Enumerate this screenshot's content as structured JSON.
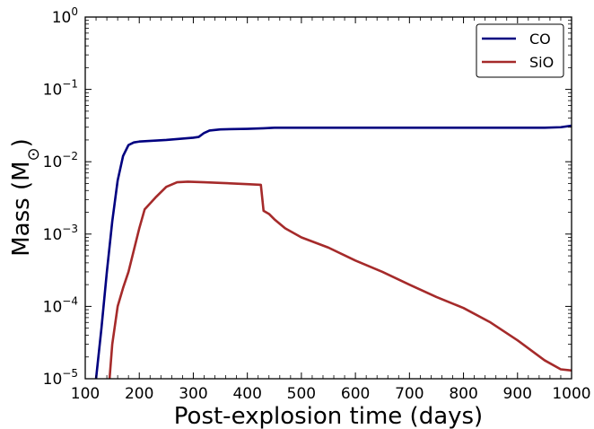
{
  "chart_data": {
    "type": "line",
    "xlabel": "Post-explosion time (days)",
    "ylabel": "Mass (M",
    "ylabel_sub": "⊙",
    "ylabel_close": ")",
    "xlim": [
      100,
      1000
    ],
    "ylim": [
      1e-05,
      1
    ],
    "yscale": "log",
    "grid": false,
    "legend_position": "top-right",
    "xticks": [
      100,
      200,
      300,
      400,
      500,
      600,
      700,
      800,
      900,
      1000
    ],
    "xtick_labels": [
      "100",
      "200",
      "300",
      "400",
      "500",
      "600",
      "700",
      "800",
      "900",
      "1000"
    ],
    "yticks": [
      {
        "value": 1e-05,
        "base": "10",
        "exp": "−5"
      },
      {
        "value": 0.0001,
        "base": "10",
        "exp": "−4"
      },
      {
        "value": 0.001,
        "base": "10",
        "exp": "−3"
      },
      {
        "value": 0.01,
        "base": "10",
        "exp": "−2"
      },
      {
        "value": 0.1,
        "base": "10",
        "exp": "−1"
      },
      {
        "value": 1,
        "base": "10",
        "exp": "0"
      }
    ],
    "series": [
      {
        "name": "CO",
        "color": "#000080",
        "points": [
          [
            120,
            1e-05
          ],
          [
            130,
            5e-05
          ],
          [
            140,
            0.0003
          ],
          [
            150,
            0.0015
          ],
          [
            160,
            0.0055
          ],
          [
            170,
            0.012
          ],
          [
            180,
            0.017
          ],
          [
            190,
            0.0185
          ],
          [
            200,
            0.019
          ],
          [
            250,
            0.02
          ],
          [
            300,
            0.0215
          ],
          [
            310,
            0.022
          ],
          [
            320,
            0.025
          ],
          [
            330,
            0.027
          ],
          [
            350,
            0.028
          ],
          [
            400,
            0.0285
          ],
          [
            430,
            0.029
          ],
          [
            450,
            0.0295
          ],
          [
            500,
            0.0295
          ],
          [
            600,
            0.0295
          ],
          [
            700,
            0.0295
          ],
          [
            800,
            0.0295
          ],
          [
            900,
            0.0295
          ],
          [
            950,
            0.0295
          ],
          [
            980,
            0.03
          ],
          [
            1000,
            0.0315
          ]
        ]
      },
      {
        "name": "SiO",
        "color": "#A52A2A",
        "points": [
          [
            145,
            1e-05
          ],
          [
            150,
            3e-05
          ],
          [
            160,
            0.0001
          ],
          [
            170,
            0.00018
          ],
          [
            180,
            0.0003
          ],
          [
            190,
            0.0006
          ],
          [
            200,
            0.0012
          ],
          [
            210,
            0.0022
          ],
          [
            230,
            0.0032
          ],
          [
            250,
            0.0045
          ],
          [
            270,
            0.0052
          ],
          [
            290,
            0.0053
          ],
          [
            320,
            0.0052
          ],
          [
            350,
            0.0051
          ],
          [
            400,
            0.0049
          ],
          [
            425,
            0.0048
          ],
          [
            430,
            0.0021
          ],
          [
            440,
            0.0019
          ],
          [
            450,
            0.0016
          ],
          [
            470,
            0.0012
          ],
          [
            500,
            0.0009
          ],
          [
            550,
            0.00065
          ],
          [
            600,
            0.00043
          ],
          [
            650,
            0.0003
          ],
          [
            700,
            0.0002
          ],
          [
            750,
            0.000135
          ],
          [
            800,
            9.5e-05
          ],
          [
            850,
            6e-05
          ],
          [
            900,
            3.4e-05
          ],
          [
            950,
            1.8e-05
          ],
          [
            980,
            1.35e-05
          ],
          [
            1000,
            1.3e-05
          ]
        ]
      }
    ]
  }
}
